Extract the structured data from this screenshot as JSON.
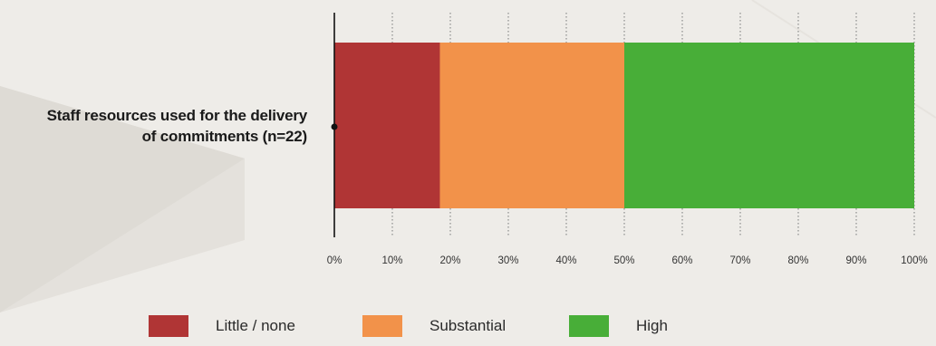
{
  "chart_data": {
    "type": "bar",
    "orientation": "horizontal",
    "stacked": true,
    "categories": [
      "Staff resources used for the delivery of commitments (n=22)"
    ],
    "series": [
      {
        "name": "Little / none",
        "values": [
          18.2
        ],
        "color": "#b03535"
      },
      {
        "name": "Substantial",
        "values": [
          31.8
        ],
        "color": "#f2924a"
      },
      {
        "name": "High",
        "values": [
          50.0
        ],
        "color": "#48ae38"
      }
    ],
    "xlim": [
      0,
      100
    ],
    "xticks": [
      "0%",
      "10%",
      "20%",
      "30%",
      "40%",
      "50%",
      "60%",
      "70%",
      "80%",
      "90%",
      "100%"
    ],
    "grid": "vertical dotted",
    "legend": "bottom"
  },
  "labels": {
    "category_line1": "Staff resources used for the delivery",
    "category_line2": "of commitments (n=22)"
  }
}
